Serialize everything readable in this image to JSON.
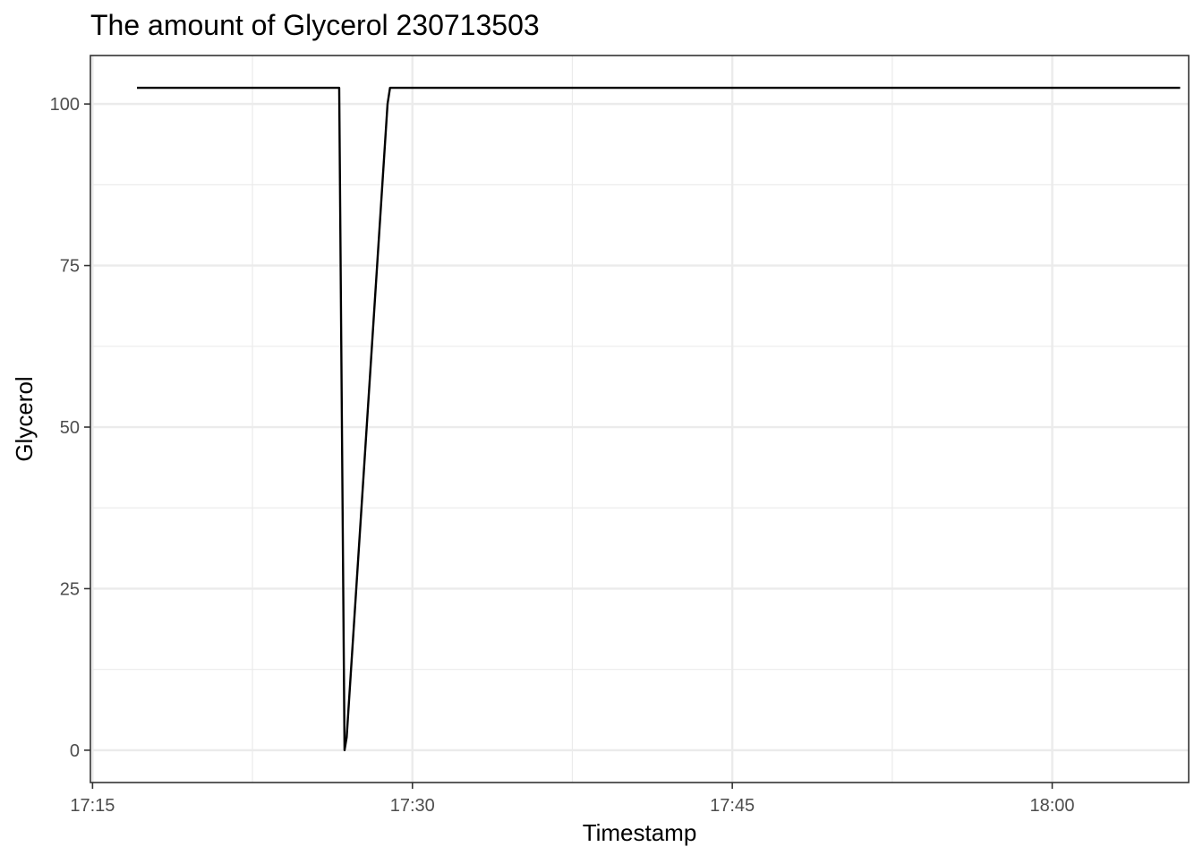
{
  "chart_data": {
    "type": "line",
    "title": "The amount of Glycerol 230713503",
    "xlabel": "Timestamp",
    "ylabel": "Glycerol",
    "x_unit": "time of day (HH:MM)",
    "xlim": [
      "17:14:54",
      "18:06:24"
    ],
    "ylim": [
      -5,
      107.5
    ],
    "x_ticks": [
      "17:15",
      "17:30",
      "17:45",
      "18:00"
    ],
    "x_minor_ticks": [
      "17:22:30",
      "17:37:30",
      "17:52:30",
      "18:07:30"
    ],
    "y_ticks": [
      0,
      25,
      50,
      75,
      100
    ],
    "y_minor_ticks": [
      12.5,
      37.5,
      62.5,
      87.5
    ],
    "grid": true,
    "legend": "none",
    "line_color": "#000000",
    "series": [
      {
        "points": [
          [
            "17:17:05",
            102.5
          ],
          [
            "17:26:34",
            102.5
          ],
          [
            "17:26:49",
            0
          ],
          [
            "17:26:55",
            2
          ],
          [
            "17:28:50",
            100
          ],
          [
            "17:28:57",
            102.5
          ],
          [
            "18:06:00",
            102.5
          ]
        ]
      }
    ]
  }
}
